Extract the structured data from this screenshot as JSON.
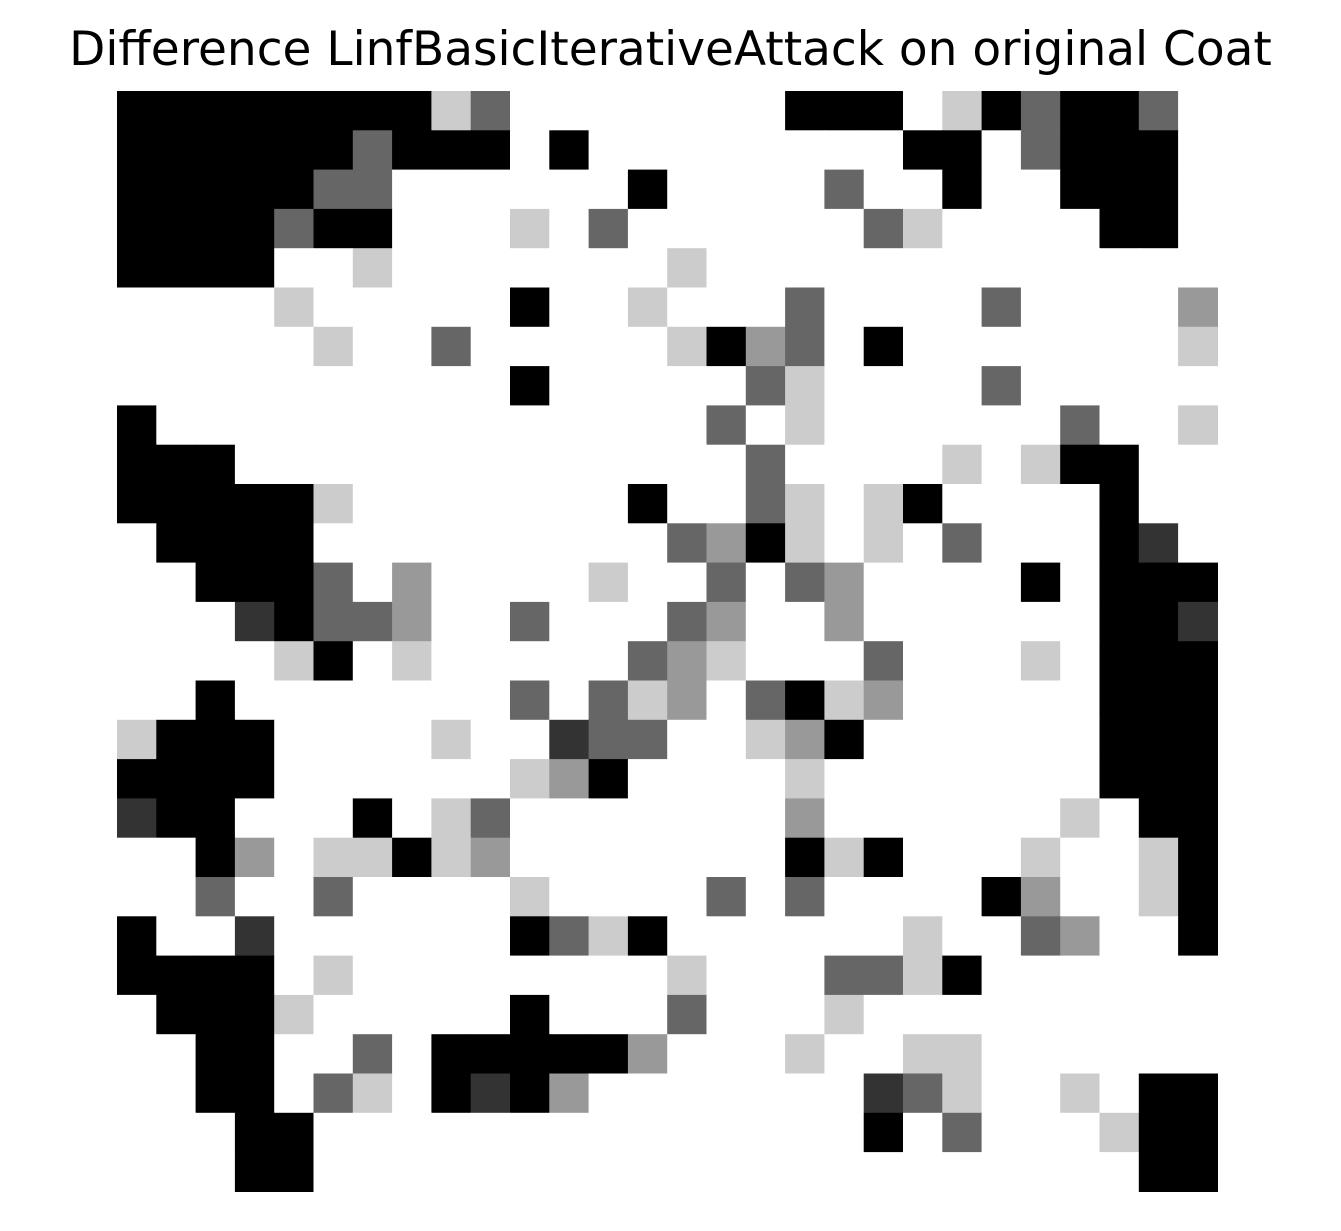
{
  "chart_data": {
    "type": "heatmap",
    "title": "Difference LinfBasicIterativeAttack on original Coat",
    "colormap": "gray_r",
    "axes_visible": false,
    "grid": false,
    "rows": 28,
    "cols": 28,
    "values": [
      [
        4,
        4,
        4,
        4,
        4,
        4,
        4,
        4,
        1,
        2,
        0,
        0,
        0,
        0,
        0,
        0,
        0,
        4,
        4,
        4,
        0,
        1,
        4,
        2,
        4,
        4,
        2,
        0
      ],
      [
        4,
        4,
        4,
        4,
        4,
        4,
        2,
        4,
        4,
        4,
        0,
        4,
        0,
        0,
        0,
        0,
        0,
        0,
        0,
        0,
        4,
        4,
        0,
        2,
        4,
        4,
        4,
        0
      ],
      [
        4,
        4,
        4,
        4,
        4,
        2,
        2,
        0,
        0,
        0,
        0,
        0,
        0,
        4,
        0,
        0,
        0,
        0,
        2,
        0,
        0,
        4,
        0,
        0,
        4,
        4,
        4,
        0
      ],
      [
        4,
        4,
        4,
        4,
        2,
        4,
        4,
        0,
        0,
        0,
        1,
        0,
        2,
        0,
        0,
        0,
        0,
        0,
        0,
        2,
        1,
        0,
        0,
        0,
        0,
        4,
        4,
        0
      ],
      [
        4,
        4,
        4,
        4,
        0,
        0,
        1,
        0,
        0,
        0,
        0,
        0,
        0,
        0,
        1,
        0,
        0,
        0,
        0,
        0,
        0,
        0,
        0,
        0,
        0,
        0,
        0,
        0
      ],
      [
        0,
        0,
        0,
        0,
        1,
        0,
        0,
        0,
        0,
        0,
        4,
        0,
        0,
        1,
        0,
        0,
        0,
        2,
        0,
        0,
        0,
        0,
        2,
        0,
        0,
        0,
        0,
        3
      ],
      [
        0,
        0,
        0,
        0,
        0,
        1,
        0,
        0,
        2,
        0,
        0,
        0,
        0,
        0,
        1,
        4,
        3,
        2,
        0,
        4,
        0,
        0,
        0,
        0,
        0,
        0,
        0,
        1
      ],
      [
        0,
        0,
        0,
        0,
        0,
        0,
        0,
        0,
        0,
        0,
        4,
        0,
        0,
        0,
        0,
        0,
        2,
        1,
        0,
        0,
        0,
        0,
        2,
        0,
        0,
        0,
        0,
        0
      ],
      [
        4,
        0,
        0,
        0,
        0,
        0,
        0,
        0,
        0,
        0,
        0,
        0,
        0,
        0,
        0,
        2,
        0,
        1,
        0,
        0,
        0,
        0,
        0,
        0,
        2,
        0,
        0,
        1
      ],
      [
        4,
        4,
        4,
        0,
        0,
        0,
        0,
        0,
        0,
        0,
        0,
        0,
        0,
        0,
        0,
        0,
        2,
        0,
        0,
        0,
        0,
        1,
        0,
        1,
        4,
        4,
        0,
        0
      ],
      [
        4,
        4,
        4,
        4,
        4,
        1,
        0,
        0,
        0,
        0,
        0,
        0,
        0,
        4,
        0,
        0,
        2,
        1,
        0,
        1,
        4,
        0,
        0,
        0,
        0,
        4,
        0,
        0
      ],
      [
        0,
        4,
        4,
        4,
        4,
        0,
        0,
        0,
        0,
        0,
        0,
        0,
        0,
        0,
        2,
        3,
        4,
        1,
        0,
        1,
        0,
        2,
        0,
        0,
        0,
        4,
        5,
        0
      ],
      [
        0,
        0,
        4,
        4,
        4,
        2,
        0,
        3,
        0,
        0,
        0,
        0,
        1,
        0,
        0,
        2,
        0,
        2,
        3,
        0,
        0,
        0,
        0,
        4,
        0,
        4,
        4,
        4
      ],
      [
        0,
        0,
        0,
        5,
        4,
        2,
        2,
        3,
        0,
        0,
        2,
        0,
        0,
        0,
        2,
        3,
        0,
        0,
        3,
        0,
        0,
        0,
        0,
        0,
        0,
        4,
        4,
        5
      ],
      [
        0,
        0,
        0,
        0,
        1,
        4,
        0,
        1,
        0,
        0,
        0,
        0,
        0,
        2,
        3,
        1,
        0,
        0,
        0,
        2,
        0,
        0,
        0,
        1,
        0,
        4,
        4,
        4
      ],
      [
        0,
        0,
        4,
        0,
        0,
        0,
        0,
        0,
        0,
        0,
        2,
        0,
        2,
        1,
        3,
        0,
        2,
        4,
        1,
        3,
        0,
        0,
        0,
        0,
        0,
        4,
        4,
        4
      ],
      [
        1,
        4,
        4,
        4,
        0,
        0,
        0,
        0,
        1,
        0,
        0,
        5,
        2,
        2,
        0,
        0,
        1,
        3,
        4,
        0,
        0,
        0,
        0,
        0,
        0,
        4,
        4,
        4
      ],
      [
        4,
        4,
        4,
        4,
        0,
        0,
        0,
        0,
        0,
        0,
        1,
        3,
        4,
        0,
        0,
        0,
        0,
        1,
        0,
        0,
        0,
        0,
        0,
        0,
        0,
        4,
        4,
        4
      ],
      [
        5,
        4,
        4,
        0,
        0,
        0,
        4,
        0,
        1,
        2,
        0,
        0,
        0,
        0,
        0,
        0,
        0,
        3,
        0,
        0,
        0,
        0,
        0,
        0,
        1,
        0,
        4,
        4
      ],
      [
        0,
        0,
        4,
        3,
        0,
        1,
        1,
        4,
        1,
        3,
        0,
        0,
        0,
        0,
        0,
        0,
        0,
        4,
        1,
        4,
        0,
        0,
        0,
        1,
        0,
        0,
        1,
        4
      ],
      [
        0,
        0,
        2,
        0,
        0,
        2,
        0,
        0,
        0,
        0,
        1,
        0,
        0,
        0,
        0,
        2,
        0,
        2,
        0,
        0,
        0,
        0,
        4,
        3,
        0,
        0,
        1,
        4
      ],
      [
        4,
        0,
        0,
        5,
        0,
        0,
        0,
        0,
        0,
        0,
        4,
        2,
        1,
        4,
        0,
        0,
        0,
        0,
        0,
        0,
        1,
        0,
        0,
        2,
        3,
        0,
        0,
        4
      ],
      [
        4,
        4,
        4,
        4,
        0,
        1,
        0,
        0,
        0,
        0,
        0,
        0,
        0,
        0,
        1,
        0,
        0,
        0,
        2,
        2,
        1,
        4,
        0,
        0,
        0,
        0,
        0,
        0
      ],
      [
        0,
        4,
        4,
        4,
        1,
        0,
        0,
        0,
        0,
        0,
        4,
        0,
        0,
        0,
        2,
        0,
        0,
        0,
        1,
        0,
        0,
        0,
        0,
        0,
        0,
        0,
        0,
        0
      ],
      [
        0,
        0,
        4,
        4,
        0,
        0,
        2,
        0,
        4,
        4,
        4,
        4,
        4,
        3,
        0,
        0,
        0,
        1,
        0,
        0,
        1,
        1,
        0,
        0,
        0,
        0,
        0,
        0
      ],
      [
        0,
        0,
        4,
        4,
        0,
        2,
        1,
        0,
        4,
        5,
        4,
        3,
        0,
        0,
        0,
        0,
        0,
        0,
        0,
        5,
        2,
        1,
        0,
        0,
        1,
        0,
        4,
        4
      ],
      [
        0,
        0,
        0,
        4,
        4,
        0,
        0,
        0,
        0,
        0,
        0,
        0,
        0,
        0,
        0,
        0,
        0,
        0,
        0,
        4,
        0,
        2,
        0,
        0,
        0,
        1,
        4,
        4
      ],
      [
        0,
        0,
        0,
        4,
        4,
        0,
        0,
        0,
        0,
        0,
        0,
        0,
        0,
        0,
        0,
        0,
        0,
        0,
        0,
        0,
        0,
        0,
        0,
        0,
        0,
        0,
        4,
        4
      ]
    ],
    "value_colors": [
      "#ffffff",
      "#cccccc",
      "#666666",
      "#999999",
      "#000000",
      "#333333"
    ]
  }
}
